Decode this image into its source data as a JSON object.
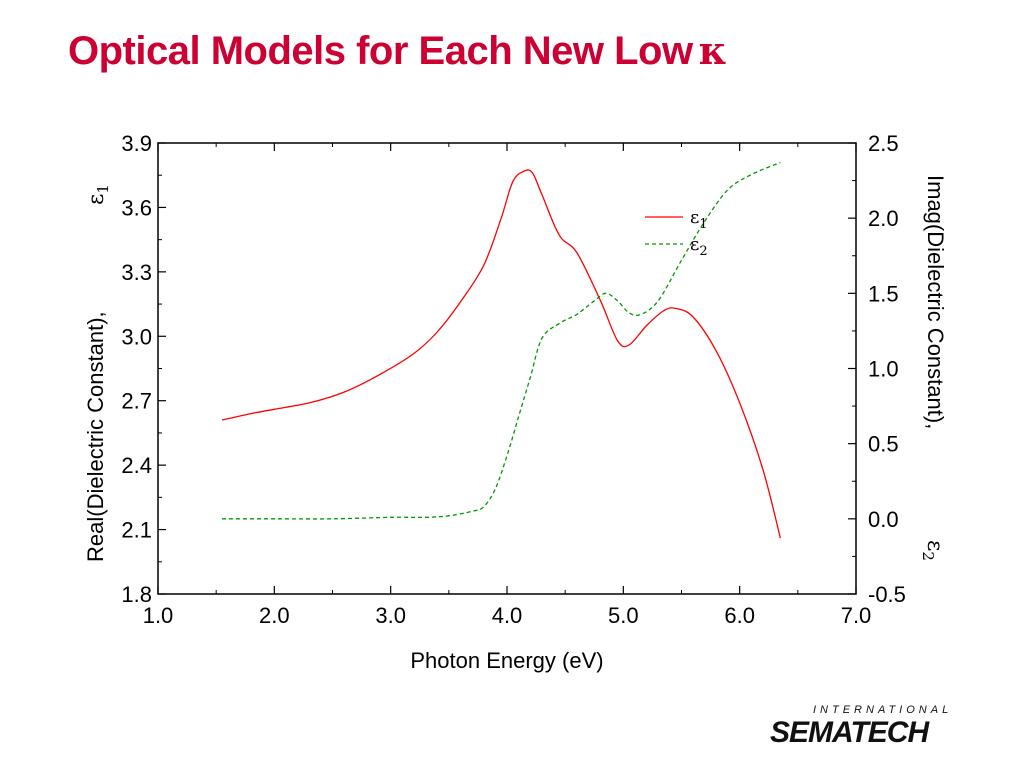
{
  "slide": {
    "title": "Optical Models for Each New Low",
    "title_symbol": "κ",
    "title_color": "#cc0033"
  },
  "logo": {
    "top": "INTERNATIONAL",
    "main": "SEMATECH"
  },
  "chart_data": {
    "type": "line",
    "xlabel": "Photon Energy (eV)",
    "ylabel": "Real(Dielectric Constant),",
    "ylabel_symbol": "ε",
    "ylabel_sub": "1",
    "y2label": "Imag(Dielectric Constant),",
    "y2label_symbol": "ε",
    "y2label_sub": "2",
    "xlim": [
      1.0,
      7.0
    ],
    "ylim": [
      1.8,
      3.9
    ],
    "y2lim": [
      -0.5,
      2.5
    ],
    "x_ticks": [
      "1.0",
      "2.0",
      "3.0",
      "4.0",
      "5.0",
      "6.0",
      "7.0"
    ],
    "y_ticks": [
      "1.8",
      "2.1",
      "2.4",
      "2.7",
      "3.0",
      "3.3",
      "3.6",
      "3.9"
    ],
    "y2_ticks": [
      "-0.5",
      "0.0",
      "0.5",
      "1.0",
      "1.5",
      "2.0",
      "2.5"
    ],
    "grid": false,
    "legend_position": "top-right",
    "series": [
      {
        "name": "ε1",
        "axis": "left",
        "color": "#ff0000",
        "style": "solid",
        "x": [
          1.55,
          1.8,
          2.0,
          2.3,
          2.6,
          2.9,
          3.2,
          3.4,
          3.6,
          3.8,
          3.95,
          4.05,
          4.15,
          4.22,
          4.3,
          4.45,
          4.6,
          4.8,
          4.95,
          5.05,
          5.2,
          5.35,
          5.45,
          5.6,
          5.8,
          6.0,
          6.2,
          6.35
        ],
        "y": [
          2.61,
          2.64,
          2.66,
          2.69,
          2.74,
          2.82,
          2.92,
          3.02,
          3.16,
          3.33,
          3.55,
          3.72,
          3.77,
          3.76,
          3.66,
          3.47,
          3.39,
          3.17,
          2.98,
          2.96,
          3.05,
          3.12,
          3.13,
          3.09,
          2.93,
          2.69,
          2.38,
          2.06
        ]
      },
      {
        "name": "ε2",
        "axis": "right",
        "color": "#009900",
        "style": "dashed",
        "x": [
          1.55,
          2.0,
          2.5,
          3.0,
          3.3,
          3.5,
          3.7,
          3.8,
          3.9,
          4.0,
          4.1,
          4.2,
          4.3,
          4.45,
          4.6,
          4.75,
          4.85,
          4.95,
          5.05,
          5.15,
          5.3,
          5.5,
          5.7,
          5.9,
          6.1,
          6.35
        ],
        "y": [
          0.0,
          0.0,
          0.0,
          0.01,
          0.01,
          0.02,
          0.05,
          0.08,
          0.2,
          0.42,
          0.68,
          0.94,
          1.2,
          1.3,
          1.36,
          1.45,
          1.5,
          1.45,
          1.37,
          1.36,
          1.45,
          1.72,
          1.98,
          2.19,
          2.29,
          2.37
        ]
      }
    ]
  }
}
